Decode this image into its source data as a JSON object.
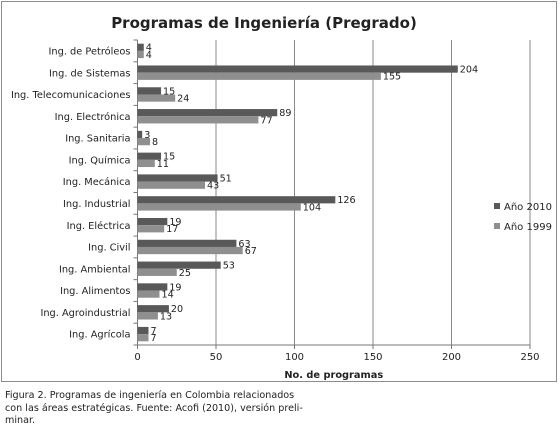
{
  "chart_data": {
    "type": "bar",
    "orientation": "horizontal",
    "title": "Programas de Ingeniería (Pregrado)",
    "xlabel": "No. de programas",
    "ylabel": "",
    "xlim": [
      0,
      250
    ],
    "xticks": [
      "0",
      "50",
      "100",
      "150",
      "200",
      "250"
    ],
    "grid": true,
    "legend_position": "right",
    "categories": [
      "Ing. de Petróleos",
      "Ing. de Sistemas",
      "Ing. Telecomunicaciones",
      "Ing. Electrónica",
      "Ing. Sanitaria",
      "Ing. Química",
      "Ing. Mecánica",
      "Ing. Industrial",
      "Ing. Eléctrica",
      "Ing. Civil",
      "Ing. Ambiental",
      "Ing. Alimentos",
      "Ing. Agroindustrial",
      "Ing. Agrícola"
    ],
    "series": [
      {
        "name": "Año 2010",
        "color": "#595959",
        "values": [
          4,
          204,
          15,
          89,
          3,
          15,
          51,
          126,
          19,
          63,
          53,
          19,
          20,
          7
        ]
      },
      {
        "name": "Año 1999",
        "color": "#8f8f8f",
        "values": [
          4,
          155,
          24,
          77,
          8,
          11,
          43,
          104,
          17,
          67,
          25,
          14,
          13,
          7
        ]
      }
    ]
  },
  "caption": "Figura 2. Programas de ingeniería en Colombia relacionados\ncon las áreas estratégicas. Fuente: Acofi (2010), versión preli-\nminar."
}
